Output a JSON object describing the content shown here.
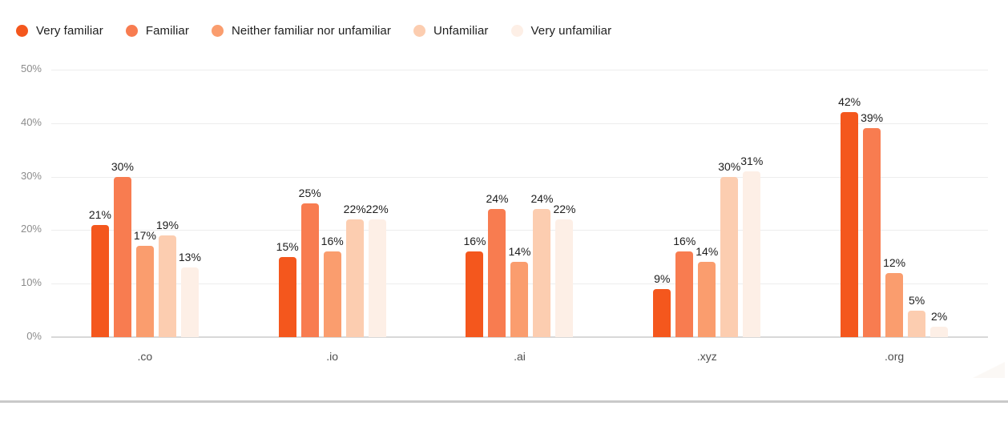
{
  "legend": [
    {
      "label": "Very familiar",
      "color": "#F4571D"
    },
    {
      "label": "Familiar",
      "color": "#F87C50"
    },
    {
      "label": "Neither familiar nor unfamiliar",
      "color": "#FA9D6E"
    },
    {
      "label": "Unfamiliar",
      "color": "#FCCDB0"
    },
    {
      "label": "Very unfamiliar",
      "color": "#FDEFE6"
    }
  ],
  "chart_data": {
    "type": "bar",
    "title": "",
    "categories": [
      ".co",
      ".io",
      ".ai",
      ".xyz",
      ".org"
    ],
    "series": [
      {
        "name": "Very familiar",
        "color": "#F4571D",
        "values": [
          21,
          15,
          16,
          9,
          42
        ],
        "labels": [
          "21%",
          "15%",
          "16%",
          "9%",
          "42%"
        ]
      },
      {
        "name": "Familiar",
        "color": "#F87C50",
        "values": [
          30,
          25,
          24,
          16,
          39
        ],
        "labels": [
          "30%",
          "25%",
          "24%",
          "16%",
          "39%"
        ]
      },
      {
        "name": "Neither familiar nor unfamiliar",
        "color": "#FA9D6E",
        "values": [
          17,
          16,
          14,
          14,
          12
        ],
        "labels": [
          "17%",
          "16%",
          "14%",
          "14%",
          "12%"
        ]
      },
      {
        "name": "Unfamiliar",
        "color": "#FCCDB0",
        "values": [
          19,
          22,
          24,
          30,
          5
        ],
        "labels": [
          "19%",
          "22%",
          "24%",
          "30%",
          "5%"
        ]
      },
      {
        "name": "Very unfamiliar",
        "color": "#FDEFE6",
        "values": [
          13,
          22,
          22,
          31,
          2
        ],
        "labels": [
          "13%",
          "22%",
          "22%",
          "31%",
          "2%"
        ]
      }
    ],
    "y_ticks": [
      "0%",
      "10%",
      "20%",
      "30%",
      "40%",
      "50%"
    ],
    "ylim": [
      0,
      50
    ],
    "value_suffix": "%",
    "grid": true,
    "legend_position": "top"
  },
  "colors": {
    "gridline": "#EDEDED",
    "axis_line": "#D8D8D8",
    "y_tick_text": "#8C8C8C",
    "category_text": "#4F4F4F",
    "value_text": "#1C1C1C",
    "legend_text": "#202020",
    "bottom_divider": "#C9C9C9",
    "background": "#FFFFFF"
  }
}
